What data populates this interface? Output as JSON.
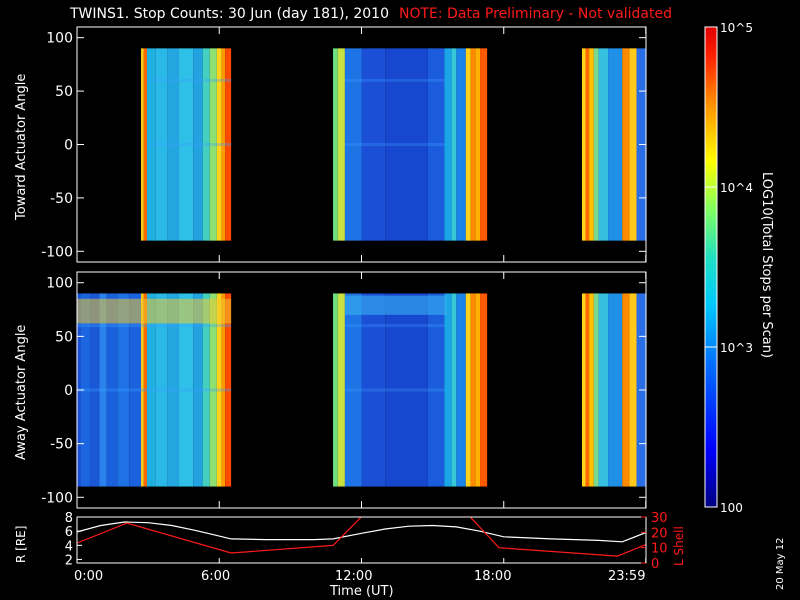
{
  "header": {
    "title": "TWINS1. Stop Counts: 30 Jun (day 181), 2010",
    "note": "NOTE: Data Preliminary - Not validated"
  },
  "colorbar": {
    "label": "LOG10(Total Stops per Scan)",
    "ticks": [
      "10^5",
      "10^4",
      "10^3",
      "100"
    ],
    "tick_values": [
      100000,
      10000,
      1000,
      100
    ],
    "scale": "log",
    "range": [
      100,
      100000
    ]
  },
  "date_stamp": "20 May 12",
  "chart_data": [
    {
      "type": "heatmap",
      "ylabel": "Toward Actuator Angle",
      "ylim": [
        -110,
        110
      ],
      "yticks": [
        100,
        50,
        0,
        -50,
        -100
      ],
      "x_range_hours": [
        0,
        24
      ],
      "data_extent_y": [
        -90,
        90
      ],
      "coverage_hours": [
        [
          2.7,
          6.5
        ],
        [
          10.8,
          17.3
        ],
        [
          21.3,
          23.99
        ]
      ],
      "dominant_colors": [
        "#1a3ccf",
        "#19a8e8",
        "#ffd21a",
        "#ff3a00"
      ]
    },
    {
      "type": "heatmap",
      "ylabel": "Away Actuator Angle",
      "ylim": [
        -110,
        110
      ],
      "yticks": [
        100,
        50,
        0,
        -50,
        -100
      ],
      "x_range_hours": [
        0,
        24
      ],
      "data_extent_y": [
        -90,
        90
      ],
      "coverage_hours": [
        [
          0,
          6.5
        ],
        [
          10.8,
          17.3
        ],
        [
          21.3,
          23.99
        ]
      ],
      "dominant_colors": [
        "#1a3ccf",
        "#19a8e8",
        "#ffd21a",
        "#ff3a00"
      ]
    },
    {
      "type": "line",
      "ylabel_left": "R [RE]",
      "ylabel_right": "L Shell",
      "ylim_left": [
        1.5,
        8
      ],
      "ylim_right": [
        0,
        30
      ],
      "yticks_left": [
        "8",
        "6",
        "4",
        "2"
      ],
      "yticks_right": [
        "30",
        "20",
        "10",
        "0"
      ],
      "xlabel": "Time (UT)",
      "xtick_labels": [
        "0:00",
        "6:00",
        "12:00",
        "18:00",
        "23:59"
      ],
      "xtick_hours": [
        0,
        6,
        12,
        18,
        23.99
      ],
      "series": [
        {
          "name": "R",
          "color": "#ffffff",
          "x": [
            0,
            1,
            2,
            3,
            4,
            5,
            6,
            6.5,
            8,
            10,
            10.8,
            12,
            13,
            14,
            15,
            16,
            17,
            18,
            20,
            22,
            23,
            23.99
          ],
          "y": [
            5.9,
            6.8,
            7.3,
            7.2,
            6.8,
            6.1,
            5.3,
            4.9,
            4.8,
            4.8,
            4.9,
            5.7,
            6.3,
            6.7,
            6.8,
            6.6,
            6.0,
            5.2,
            4.9,
            4.7,
            4.5,
            5.8
          ]
        },
        {
          "name": "L Shell",
          "color": "#ff1a1a",
          "x": [
            0,
            2.1,
            6.5,
            10.8,
            12.5,
            16.1,
            17.8,
            22.8,
            23.99
          ],
          "y": [
            13,
            26,
            6.5,
            11.5,
            38,
            38,
            10,
            4.5,
            12
          ]
        }
      ]
    }
  ]
}
